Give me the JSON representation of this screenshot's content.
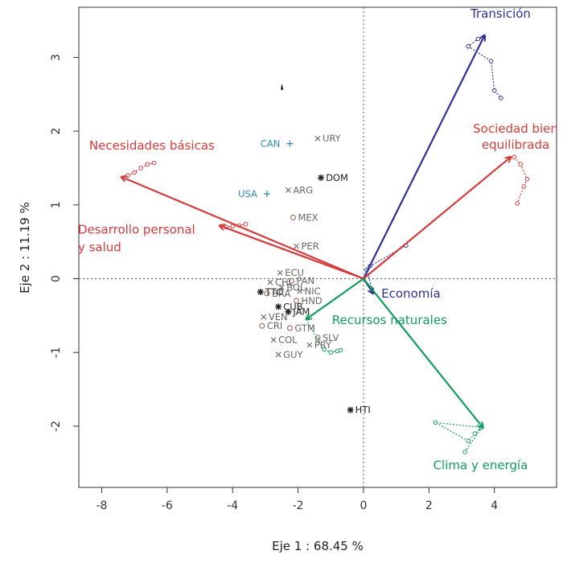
{
  "chart_data": {
    "type": "biplot",
    "xlabel": "Eje 1 : 68.45 %",
    "ylabel": "Eje 2 : 11.19 %",
    "xlim": [
      -8.7,
      5.9
    ],
    "ylim": [
      -2.83,
      3.68
    ],
    "xticks": [
      -8,
      -6,
      -4,
      -2,
      0,
      2,
      4
    ],
    "yticks": [
      -2,
      -1,
      0,
      1,
      2,
      3
    ],
    "grid": false,
    "reference_lines": "dotted lines at x=0 and y=0",
    "vectors": [
      {
        "label": "Transición",
        "color": "#2e3192",
        "x": 3.7,
        "y": 3.3,
        "trajectory": [
          [
            3.5,
            3.25
          ],
          [
            3.2,
            3.15
          ],
          [
            3.9,
            2.95
          ],
          [
            4.0,
            2.55
          ],
          [
            4.2,
            2.45
          ]
        ]
      },
      {
        "label": "Sociedad bien equilibrada",
        "color": "#d63b3b",
        "x": 4.5,
        "y": 1.65,
        "trajectory": [
          [
            4.6,
            1.65
          ],
          [
            4.8,
            1.55
          ],
          [
            5.0,
            1.35
          ],
          [
            4.9,
            1.25
          ],
          [
            4.7,
            1.02
          ]
        ]
      },
      {
        "label": "Necesidades básicas",
        "color": "#d63b3b",
        "x": -7.4,
        "y": 1.38,
        "trajectory": [
          [
            -7.2,
            1.4
          ],
          [
            -7.0,
            1.44
          ],
          [
            -6.8,
            1.5
          ],
          [
            -6.6,
            1.55
          ],
          [
            -6.4,
            1.57
          ]
        ]
      },
      {
        "label": "Desarrollo personal y salud",
        "color": "#d63b3b",
        "x": -4.4,
        "y": 0.72,
        "trajectory": [
          [
            -4.2,
            0.7
          ],
          [
            -4.0,
            0.71
          ],
          [
            -3.8,
            0.72
          ],
          [
            -3.6,
            0.74
          ]
        ]
      },
      {
        "label": "Economía",
        "color": "#2e3192",
        "x": 0.3,
        "y": -0.2,
        "trajectory": [
          [
            0.1,
            0.12
          ],
          [
            0.2,
            0.17
          ],
          [
            1.3,
            0.45
          ]
        ]
      },
      {
        "label": "Recursos naturales",
        "color": "#119c5e",
        "x": -1.75,
        "y": -0.55,
        "trajectory": [
          [
            -1.4,
            -0.83
          ],
          [
            -1.2,
            -0.96
          ],
          [
            -1.0,
            -1.0
          ],
          [
            -0.8,
            -0.98
          ],
          [
            -0.7,
            -0.97
          ]
        ]
      },
      {
        "label": "Clima y energía",
        "color": "#119c5e",
        "x": 3.65,
        "y": -2.02,
        "trajectory": [
          [
            2.2,
            -1.95
          ],
          [
            3.2,
            -2.2
          ],
          [
            3.4,
            -2.1
          ],
          [
            3.6,
            -2.02
          ],
          [
            3.1,
            -2.35
          ]
        ]
      }
    ],
    "countries": [
      {
        "code": "URY",
        "x": -1.4,
        "y": 1.9,
        "marker": "x",
        "color": "#7a6a6a"
      },
      {
        "code": "DOM",
        "x": -1.3,
        "y": 1.37,
        "marker": "*",
        "color": "#222222"
      },
      {
        "code": "ARG",
        "x": -2.3,
        "y": 1.2,
        "marker": "x",
        "color": "#7a6a6a"
      },
      {
        "code": "MEX",
        "x": -2.15,
        "y": 0.83,
        "marker": "o",
        "color": "#9c6b5c"
      },
      {
        "code": "PER",
        "x": -2.05,
        "y": 0.44,
        "marker": "x",
        "color": "#7a6a6a"
      },
      {
        "code": "ECU",
        "x": -2.55,
        "y": 0.08,
        "marker": "x",
        "color": "#7a6a6a"
      },
      {
        "code": "PAN",
        "x": -2.2,
        "y": -0.03,
        "marker": "o",
        "color": "#9c6b5c"
      },
      {
        "code": "CHL",
        "x": -2.85,
        "y": -0.05,
        "marker": "x",
        "color": "#7a6a6a"
      },
      {
        "code": "BOL",
        "x": -2.5,
        "y": -0.12,
        "marker": "x",
        "color": "#7a6a6a"
      },
      {
        "code": "NIC",
        "x": -1.95,
        "y": -0.17,
        "marker": "x",
        "color": "#7a6a6a"
      },
      {
        "code": "TTO",
        "x": -3.15,
        "y": -0.18,
        "marker": "*",
        "color": "#222222"
      },
      {
        "code": "BRA",
        "x": -2.95,
        "y": -0.2,
        "marker": "o",
        "color": "#9c6b5c"
      },
      {
        "code": "HND",
        "x": -2.05,
        "y": -0.3,
        "marker": "o",
        "color": "#9c6b5c"
      },
      {
        "code": "CUB",
        "x": -2.6,
        "y": -0.38,
        "marker": "*",
        "color": "#222222"
      },
      {
        "code": "JAM",
        "x": -2.3,
        "y": -0.45,
        "marker": "*",
        "color": "#222222"
      },
      {
        "code": "VEN",
        "x": -3.05,
        "y": -0.52,
        "marker": "x",
        "color": "#7a6a6a"
      },
      {
        "code": "CRI",
        "x": -3.1,
        "y": -0.64,
        "marker": "o",
        "color": "#9c6b5c"
      },
      {
        "code": "GTM",
        "x": -2.25,
        "y": -0.67,
        "marker": "o",
        "color": "#9c6b5c"
      },
      {
        "code": "SLV",
        "x": -1.4,
        "y": -0.8,
        "marker": "o",
        "color": "#9c6b5c"
      },
      {
        "code": "COL",
        "x": -2.75,
        "y": -0.83,
        "marker": "x",
        "color": "#7a6a6a"
      },
      {
        "code": "PRY",
        "x": -1.65,
        "y": -0.9,
        "marker": "x",
        "color": "#7a6a6a"
      },
      {
        "code": "GUY",
        "x": -2.6,
        "y": -1.03,
        "marker": "x",
        "color": "#7a6a6a"
      },
      {
        "code": "HTI",
        "x": -0.4,
        "y": -1.78,
        "marker": "*",
        "color": "#222222"
      },
      {
        "code": "CAN",
        "x": -2.25,
        "y": 1.83,
        "marker": "+",
        "color": "#2b8ab8"
      },
      {
        "code": "USA",
        "x": -2.95,
        "y": 1.15,
        "marker": "+",
        "color": "#2b8ab8"
      }
    ],
    "stray_marks": [
      {
        "x": -2.5,
        "y": 2.6
      }
    ]
  }
}
